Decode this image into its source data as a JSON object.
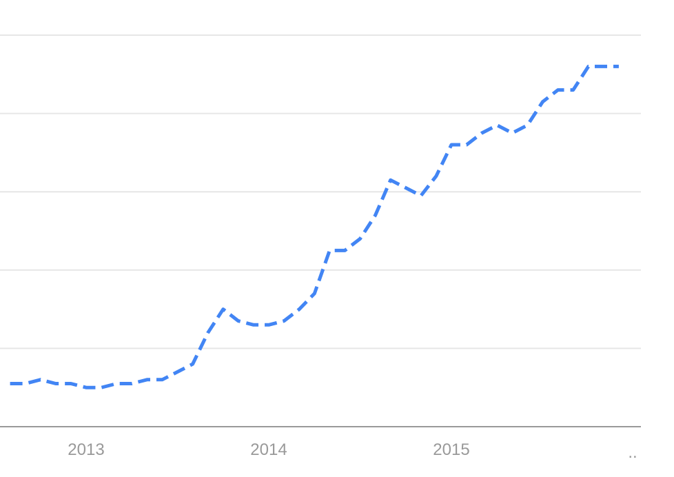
{
  "chart_data": {
    "type": "line",
    "title": "",
    "xlabel": "",
    "ylabel": "",
    "grid": true,
    "legend": "none",
    "x_tick_labels": [
      "2013",
      "2014",
      "2015",
      ".."
    ],
    "ylim": [
      0,
      100
    ],
    "series": [
      {
        "color": "#4285f4",
        "line_style": "dashed",
        "x": [
          "2012-08",
          "2012-09",
          "2012-10",
          "2012-11",
          "2012-12",
          "2013-01",
          "2013-02",
          "2013-03",
          "2013-04",
          "2013-05",
          "2013-06",
          "2013-07",
          "2013-08",
          "2013-09",
          "2013-10",
          "2013-11",
          "2013-12",
          "2014-01",
          "2014-02",
          "2014-03",
          "2014-04",
          "2014-05",
          "2014-06",
          "2014-07",
          "2014-08",
          "2014-09",
          "2014-10",
          "2014-11",
          "2014-12",
          "2015-01",
          "2015-02",
          "2015-03",
          "2015-04",
          "2015-05",
          "2015-06",
          "2015-07",
          "2015-08",
          "2015-09",
          "2015-10",
          "2015-11",
          "2015-12"
        ],
        "values": [
          11,
          11,
          12,
          11,
          11,
          10,
          10,
          11,
          11,
          12,
          12,
          14,
          16,
          24,
          30,
          27,
          26,
          26,
          27,
          30,
          34,
          45,
          45,
          48,
          54,
          63,
          61,
          59,
          64,
          72,
          72,
          75,
          77,
          75,
          77,
          83,
          86,
          86,
          92,
          92,
          92
        ]
      }
    ]
  }
}
